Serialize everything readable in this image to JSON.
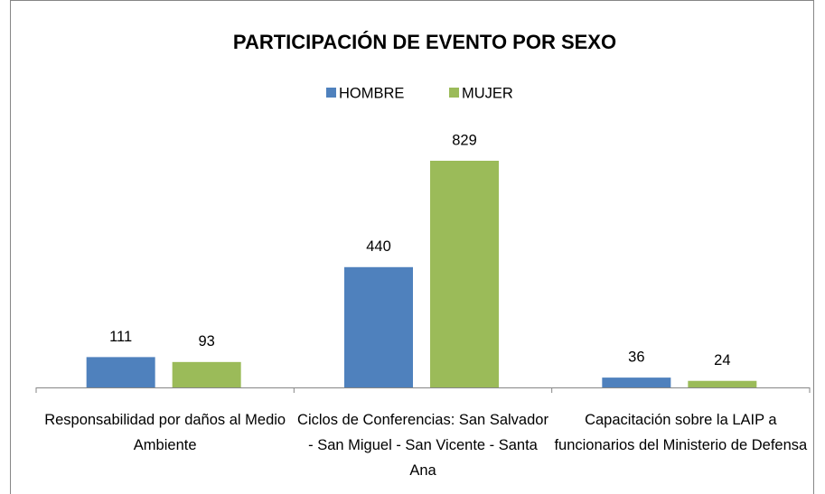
{
  "chart_data": {
    "type": "bar",
    "title": "PARTICIPACIÓN DE EVENTO POR SEXO",
    "categories": [
      "Responsabilidad por daños al Medio Ambiente",
      "Ciclos de Conferencias: San Salvador - San Miguel - San Vicente - Santa Ana",
      "Capacitación sobre la LAIP a funcionarios del Ministerio de Defensa"
    ],
    "series": [
      {
        "name": "HOMBRE",
        "color": "#4f81bd",
        "values": [
          111,
          440,
          36
        ]
      },
      {
        "name": "MUJER",
        "color": "#9bbb59",
        "values": [
          93,
          829,
          24
        ]
      }
    ],
    "legend": "top"
  }
}
